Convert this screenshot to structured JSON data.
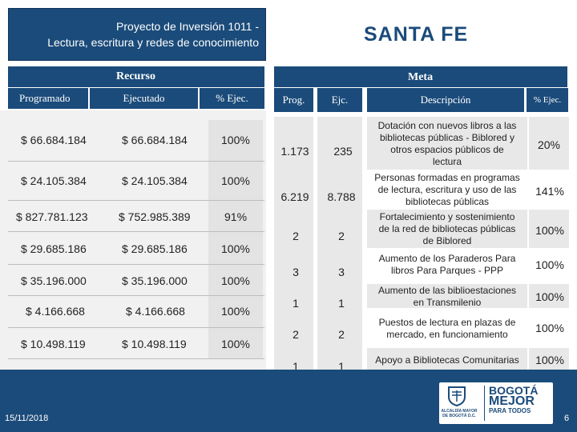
{
  "header": {
    "project_line1": "Proyecto de Inversión 1011 -",
    "project_line2": "Lectura, escritura y redes de conocimiento",
    "locality": "SANTA FE"
  },
  "recurso": {
    "label": "Recurso",
    "columns": [
      "Programado",
      "Ejecutado",
      "% Ejec."
    ],
    "rows": [
      {
        "programado": "$ 66.684.184",
        "ejecutado": "$ 66.684.184",
        "pct": "100%"
      },
      {
        "programado": "$ 24.105.384",
        "ejecutado": "$ 24.105.384",
        "pct": "100%"
      },
      {
        "programado": "$ 827.781.123",
        "ejecutado": "$ 752.985.389",
        "pct": "91%"
      },
      {
        "programado": "$ 29.685.186",
        "ejecutado": "$ 29.685.186",
        "pct": "100%"
      },
      {
        "programado": "$ 35.196.000",
        "ejecutado": "$ 35.196.000",
        "pct": "100%"
      },
      {
        "programado": "$ 4.166.668",
        "ejecutado": "$ 4.166.668",
        "pct": "100%"
      },
      {
        "programado": "$ 10.498.119",
        "ejecutado": "$ 10.498.119",
        "pct": "100%"
      }
    ]
  },
  "meta": {
    "label": "Meta",
    "columns": [
      "Prog.",
      "Ejc.",
      "Descripción",
      "% Ejec."
    ],
    "rows": [
      {
        "prog": "1.173",
        "ejc": "235",
        "desc": [
          "Dotación con nuevos libros a las",
          "bibliotecas públicas - Biblored y",
          "otros  espacios públicos de",
          "lectura"
        ],
        "pct": "20%"
      },
      {
        "prog": "6.219",
        "ejc": "8.788",
        "desc": [
          "Personas formadas en programas",
          "de lectura, escritura y uso de las",
          "bibliotecas públicas"
        ],
        "pct": "141%"
      },
      {
        "prog": "2",
        "ejc": "2",
        "desc": [
          "Fortalecimiento y sostenimiento",
          "de la red de bibliotecas públicas",
          "de Biblored"
        ],
        "pct": "100%"
      },
      {
        "prog": "3",
        "ejc": "3",
        "desc": [
          "Aumento de los Paraderos Para",
          "libros Para Parques - PPP"
        ],
        "pct": "100%"
      },
      {
        "prog": "1",
        "ejc": "1",
        "desc": [
          "Aumento de las biblioestaciones",
          "en Transmilenio"
        ],
        "pct": "100%"
      },
      {
        "prog": "2",
        "ejc": "2",
        "desc": [
          "Puestos de lectura en plazas de",
          "mercado, en funcionamiento"
        ],
        "pct": "100%"
      },
      {
        "prog": "1",
        "ejc": "1",
        "desc": [
          "Apoyo a Bibliotecas Comunitarias"
        ],
        "pct": "100%"
      }
    ]
  },
  "footer": {
    "date": "15/11/2018",
    "page": "6",
    "logo_sub": "ALCALDÍA MAYOR DE BOGOTÁ D.C.",
    "logo_line1": "BOGOTÁ",
    "logo_line2": "MEJOR",
    "logo_line3": "PARA TODOS"
  },
  "colors": {
    "primary": "#1b4b7a",
    "row_bg": "#f1f1f1",
    "alt_col_bg": "#e3e3e3"
  }
}
